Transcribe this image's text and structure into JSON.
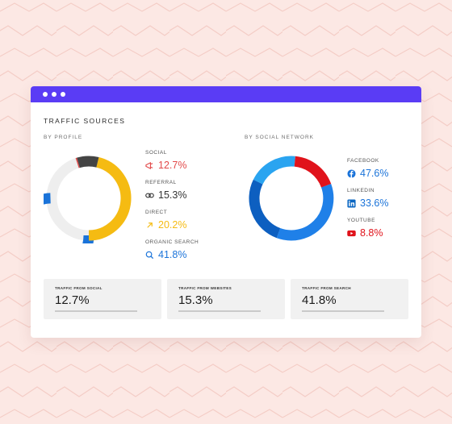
{
  "window": {
    "title": "TRAFFIC SOURCES"
  },
  "profile": {
    "label": "BY PROFILE",
    "items": [
      {
        "name": "SOCIAL",
        "value": "12.7%",
        "color": "#e24a4a",
        "icon": "megaphone-icon"
      },
      {
        "name": "REFERRAL",
        "value": "15.3%",
        "color": "#333333",
        "icon": "link-icon"
      },
      {
        "name": "DIRECT",
        "value": "20.2%",
        "color": "#f5bb12",
        "icon": "arrow-up-right-icon"
      },
      {
        "name": "ORGANIC SEARCH",
        "value": "41.8%",
        "color": "#1a73d9",
        "icon": "search-icon"
      }
    ]
  },
  "social": {
    "label": "BY SOCIAL NETWORK",
    "items": [
      {
        "name": "FACEBOOK",
        "value": "47.6%",
        "color": "#1a73d9",
        "icon": "facebook-icon"
      },
      {
        "name": "LINKEDIN",
        "value": "33.6%",
        "color": "#1a73d9",
        "icon": "linkedin-icon"
      },
      {
        "name": "YOUTUBE",
        "value": "8.8%",
        "color": "#e0131b",
        "icon": "youtube-icon"
      }
    ]
  },
  "cards": [
    {
      "label": "TRAFFIC FROM SOCIAL",
      "value": "12.7%"
    },
    {
      "label": "TRAFFIC FROM WEBSITES",
      "value": "15.3%"
    },
    {
      "label": "TRAFFIC FROM SEARCH",
      "value": "41.8%"
    }
  ],
  "colors": {
    "accent": "#5a3cf5",
    "background": "#fce8e4",
    "red": "#e24a4a",
    "yellow": "#f5bb12",
    "blue": "#1a73d9",
    "dark": "#444444",
    "light-gray": "#eeeeee"
  }
}
